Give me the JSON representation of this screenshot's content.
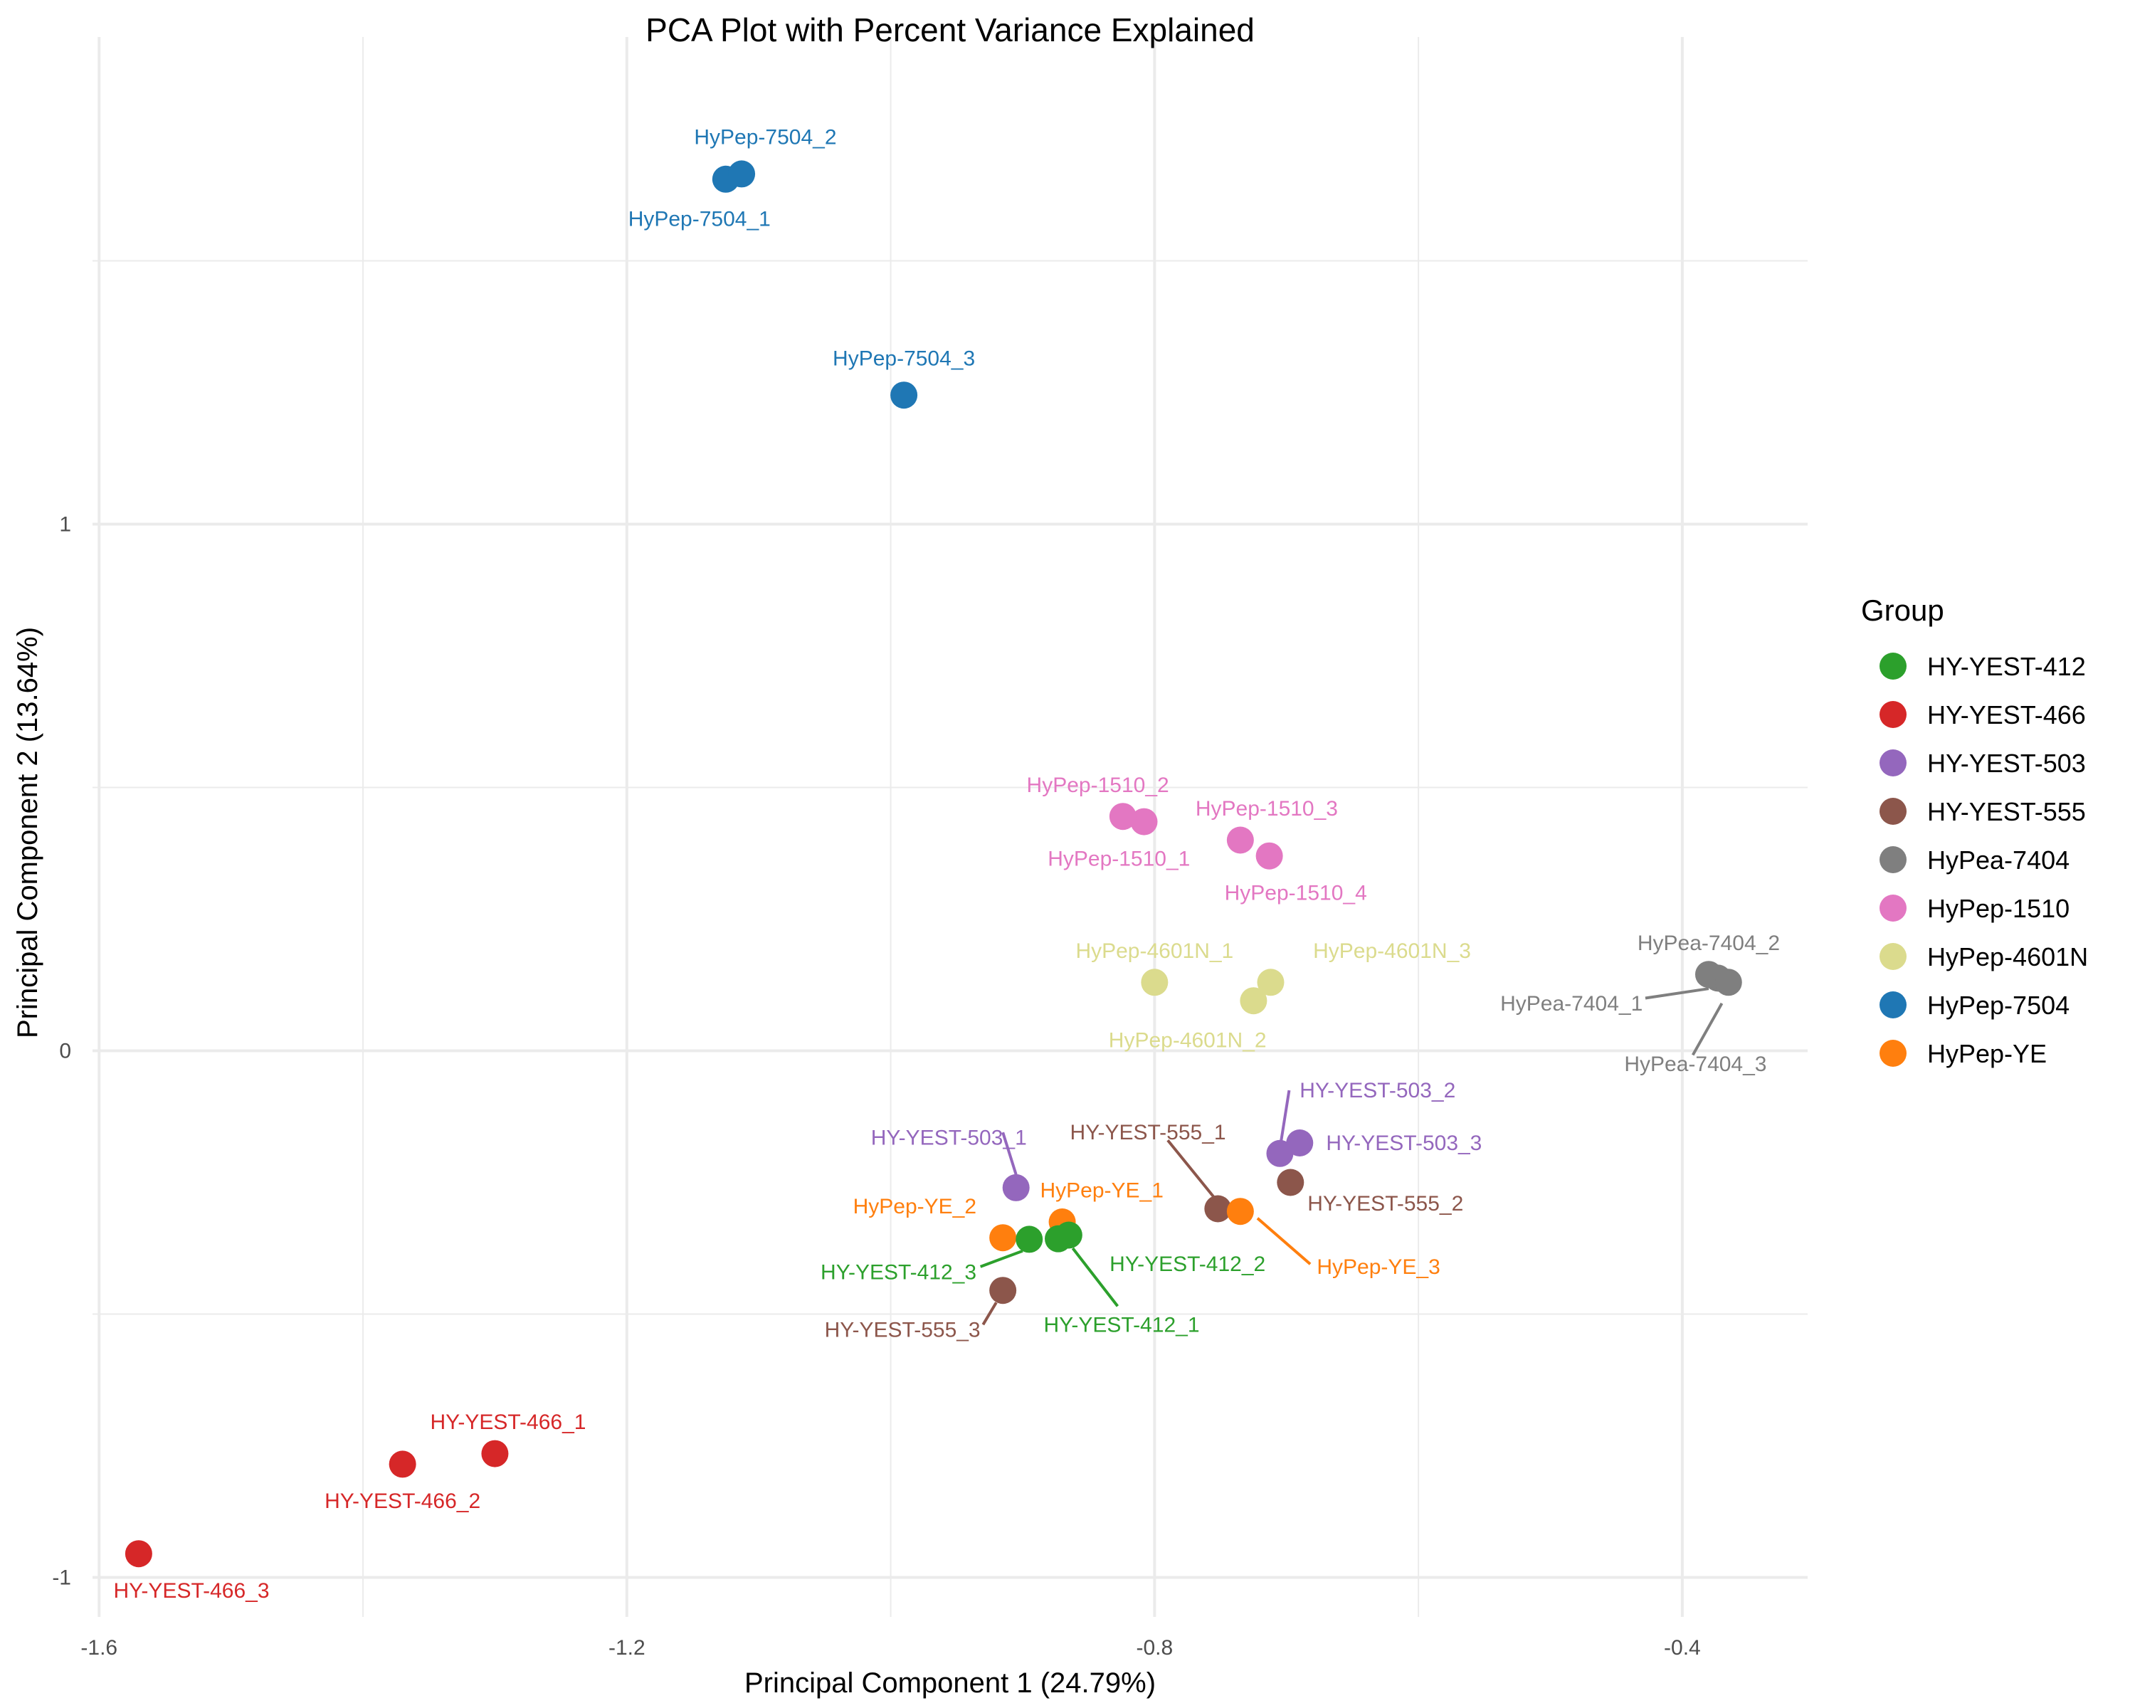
{
  "chart_data": {
    "type": "scatter",
    "title": "PCA Plot with Percent Variance Explained",
    "xlabel": "Principal Component 1 (24.79%)",
    "ylabel": "Principal Component 2 (13.64%)",
    "xlim": [
      -1.605,
      -0.305
    ],
    "ylim": [
      -1.075,
      1.925
    ],
    "x_ticks": [
      -1.6,
      -1.2,
      -0.8,
      -0.4
    ],
    "x_tick_labels": [
      "-1.6",
      "-1.2",
      "-0.8",
      "-0.4"
    ],
    "y_ticks": [
      -1,
      0,
      1
    ],
    "y_tick_labels": [
      "-1",
      "0",
      "1"
    ],
    "grid": true,
    "legend": {
      "title": "Group",
      "placement": "right",
      "entries": [
        {
          "name": "HY-YEST-412",
          "color": "#2ca02c"
        },
        {
          "name": "HY-YEST-466",
          "color": "#d62728"
        },
        {
          "name": "HY-YEST-503",
          "color": "#9467bd"
        },
        {
          "name": "HY-YEST-555",
          "color": "#8c564b"
        },
        {
          "name": "HyPea-7404",
          "color": "#7f7f7f"
        },
        {
          "name": "HyPep-1510",
          "color": "#e377c2"
        },
        {
          "name": "HyPep-4601N",
          "color": "#dbdb8d"
        },
        {
          "name": "HyPep-7504",
          "color": "#1f77b4"
        },
        {
          "name": "HyPep-YE",
          "color": "#ff7f0e"
        }
      ]
    },
    "points": [
      {
        "label": "HyPep-7504_1",
        "group": "HyPep-7504",
        "x": -1.125,
        "y": 1.655,
        "lx": -1.145,
        "ly": 1.58,
        "ld": "middle"
      },
      {
        "label": "HyPep-7504_2",
        "group": "HyPep-7504",
        "x": -1.113,
        "y": 1.665,
        "lx": -1.095,
        "ly": 1.735,
        "ld": "middle"
      },
      {
        "label": "HyPep-7504_3",
        "group": "HyPep-7504",
        "x": -0.99,
        "y": 1.245,
        "lx": -0.99,
        "ly": 1.315,
        "ld": "middle"
      },
      {
        "label": "HyPep-1510_1",
        "group": "HyPep-1510",
        "x": -0.808,
        "y": 0.435,
        "lx": -0.827,
        "ly": 0.365,
        "ld": "middle"
      },
      {
        "label": "HyPep-1510_2",
        "group": "HyPep-1510",
        "x": -0.824,
        "y": 0.445,
        "lx": -0.843,
        "ly": 0.505,
        "ld": "middle"
      },
      {
        "label": "HyPep-1510_3",
        "group": "HyPep-1510",
        "x": -0.735,
        "y": 0.4,
        "lx": -0.715,
        "ly": 0.46,
        "ld": "middle"
      },
      {
        "label": "HyPep-1510_4",
        "group": "HyPep-1510",
        "x": -0.713,
        "y": 0.37,
        "lx": -0.693,
        "ly": 0.3,
        "ld": "middle"
      },
      {
        "label": "HyPep-4601N_1",
        "group": "HyPep-4601N",
        "x": -0.8,
        "y": 0.13,
        "lx": -0.8,
        "ly": 0.19,
        "ld": "middle"
      },
      {
        "label": "HyPep-4601N_2",
        "group": "HyPep-4601N",
        "x": -0.725,
        "y": 0.095,
        "lx": -0.775,
        "ly": 0.02,
        "ld": "middle"
      },
      {
        "label": "HyPep-4601N_3",
        "group": "HyPep-4601N",
        "x": -0.712,
        "y": 0.13,
        "lx": -0.62,
        "ly": 0.19,
        "ld": "middle"
      },
      {
        "label": "HyPea-7404_1",
        "group": "HyPea-7404",
        "x": -0.373,
        "y": 0.138,
        "lx": -0.43,
        "ly": 0.09,
        "ld": "end",
        "seg": [
          -0.428,
          0.1,
          -0.38,
          0.118
        ]
      },
      {
        "label": "HyPea-7404_2",
        "group": "HyPea-7404",
        "x": -0.38,
        "y": 0.145,
        "lx": -0.38,
        "ly": 0.205,
        "ld": "middle"
      },
      {
        "label": "HyPea-7404_3",
        "group": "HyPea-7404",
        "x": -0.365,
        "y": 0.13,
        "lx": -0.39,
        "ly": -0.025,
        "ld": "middle",
        "seg": [
          -0.392,
          -0.008,
          -0.37,
          0.09
        ]
      },
      {
        "label": "HY-YEST-503_1",
        "group": "HY-YEST-503",
        "x": -0.905,
        "y": -0.26,
        "lx": -1.015,
        "ly": -0.165,
        "ld": "start",
        "seg": [
          -0.915,
          -0.155,
          -0.905,
          -0.235
        ]
      },
      {
        "label": "HY-YEST-503_2",
        "group": "HY-YEST-503",
        "x": -0.705,
        "y": -0.195,
        "lx": -0.69,
        "ly": -0.075,
        "ld": "start",
        "seg": [
          -0.698,
          -0.075,
          -0.704,
          -0.17
        ]
      },
      {
        "label": "HY-YEST-503_3",
        "group": "HY-YEST-503",
        "x": -0.69,
        "y": -0.175,
        "lx": -0.67,
        "ly": -0.175,
        "ld": "start"
      },
      {
        "label": "HY-YEST-555_1",
        "group": "HY-YEST-555",
        "x": -0.752,
        "y": -0.3,
        "lx": -0.805,
        "ly": -0.155,
        "ld": "middle",
        "seg": [
          -0.79,
          -0.17,
          -0.755,
          -0.278
        ]
      },
      {
        "label": "HY-YEST-555_2",
        "group": "HY-YEST-555",
        "x": -0.697,
        "y": -0.25,
        "lx": -0.625,
        "ly": -0.29,
        "ld": "middle"
      },
      {
        "label": "HY-YEST-555_3",
        "group": "HY-YEST-555",
        "x": -0.915,
        "y": -0.455,
        "lx": -0.932,
        "ly": -0.53,
        "ld": "end",
        "seg": [
          -0.93,
          -0.52,
          -0.92,
          -0.478
        ]
      },
      {
        "label": "HyPep-YE_1",
        "group": "HyPep-YE",
        "x": -0.87,
        "y": -0.325,
        "lx": -0.84,
        "ly": -0.265,
        "ld": "middle"
      },
      {
        "label": "HyPep-YE_2",
        "group": "HyPep-YE",
        "x": -0.915,
        "y": -0.355,
        "lx": -0.935,
        "ly": -0.295,
        "ld": "end"
      },
      {
        "label": "HyPep-YE_3",
        "group": "HyPep-YE",
        "x": -0.735,
        "y": -0.305,
        "lx": -0.677,
        "ly": -0.41,
        "ld": "start",
        "seg": [
          -0.682,
          -0.405,
          -0.722,
          -0.318
        ]
      },
      {
        "label": "HY-YEST-412_1",
        "group": "HY-YEST-412",
        "x": -0.865,
        "y": -0.35,
        "lx": -0.825,
        "ly": -0.52,
        "ld": "middle",
        "seg": [
          -0.828,
          -0.485,
          -0.862,
          -0.375
        ]
      },
      {
        "label": "HY-YEST-412_2",
        "group": "HY-YEST-412",
        "x": -0.873,
        "y": -0.357,
        "lx": -0.775,
        "ly": -0.405,
        "ld": "middle"
      },
      {
        "label": "HY-YEST-412_3",
        "group": "HY-YEST-412",
        "x": -0.895,
        "y": -0.358,
        "lx": -0.935,
        "ly": -0.42,
        "ld": "end",
        "seg": [
          -0.932,
          -0.41,
          -0.9,
          -0.38
        ]
      },
      {
        "label": "HY-YEST-466_1",
        "group": "HY-YEST-466",
        "x": -1.3,
        "y": -0.765,
        "lx": -1.29,
        "ly": -0.705,
        "ld": "middle"
      },
      {
        "label": "HY-YEST-466_2",
        "group": "HY-YEST-466",
        "x": -1.37,
        "y": -0.785,
        "lx": -1.37,
        "ly": -0.855,
        "ld": "middle"
      },
      {
        "label": "HY-YEST-466_3",
        "group": "HY-YEST-466",
        "x": -1.57,
        "y": -0.955,
        "lx": -1.53,
        "ly": -1.025,
        "ld": "middle"
      }
    ]
  }
}
